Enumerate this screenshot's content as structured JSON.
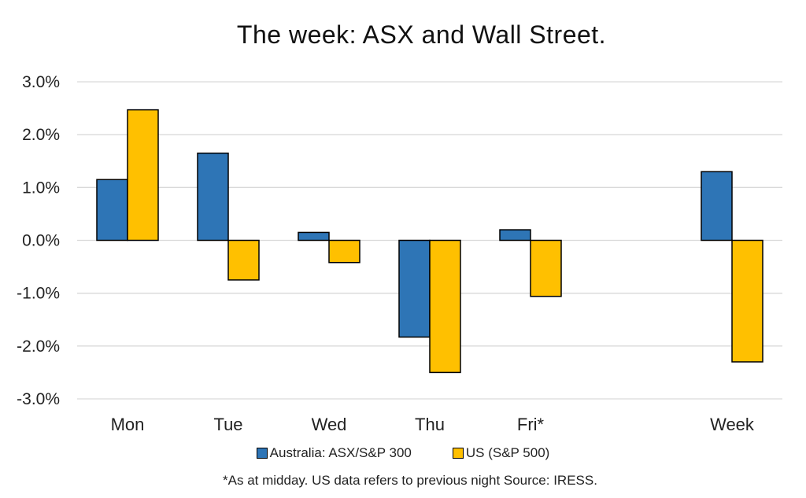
{
  "chart_data": {
    "type": "bar",
    "title": "The week:  ASX and Wall Street.",
    "categories": [
      "Mon",
      "Tue",
      "Wed",
      "Thu",
      "Fri*",
      "",
      "Week"
    ],
    "series": [
      {
        "name": "Australia: ASX/S&P 300",
        "color": "#2e75b6",
        "values": [
          1.15,
          1.65,
          0.15,
          -1.83,
          0.2,
          null,
          1.3
        ]
      },
      {
        "name": "US (S&P 500)",
        "color": "#ffc000",
        "values": [
          2.47,
          -0.75,
          -0.42,
          -2.5,
          -1.06,
          null,
          -2.3
        ]
      }
    ],
    "y_ticks": [
      "3.0%",
      "2.0%",
      "1.0%",
      "0.0%",
      "-1.0%",
      "-2.0%",
      "-3.0%"
    ],
    "ylim": [
      -3,
      3
    ],
    "grid": true,
    "legend_position": "bottom",
    "footnote": "*As at midday. US data refers to previous night  Source:  IRESS."
  }
}
